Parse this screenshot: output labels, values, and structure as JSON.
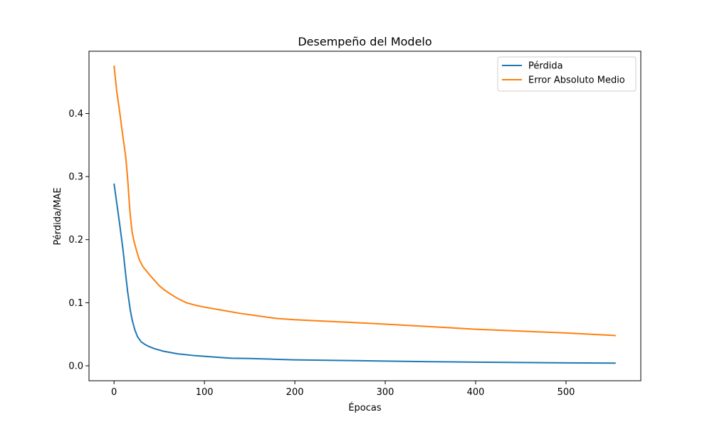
{
  "chart_data": {
    "type": "line",
    "title": "Desempeño del Modelo",
    "xlabel": "Épocas",
    "ylabel": "Pérdida/MAE",
    "xlim": [
      -27.7,
      582.7
    ],
    "ylim": [
      -0.0237,
      0.4987
    ],
    "xticks": [
      0,
      100,
      200,
      300,
      400,
      500
    ],
    "yticks": [
      0.0,
      0.1,
      0.2,
      0.3,
      0.4
    ],
    "ytick_labels": [
      "0.0",
      "0.1",
      "0.2",
      "0.3",
      "0.4"
    ],
    "xtick_labels": [
      "0",
      "100",
      "200",
      "300",
      "400",
      "500"
    ],
    "grid": false,
    "legend_position": "top-right",
    "series": [
      {
        "name": "Pérdida",
        "color": "#1f77b4",
        "x": [
          0,
          3,
          6,
          10,
          13,
          15,
          18,
          20,
          23,
          26,
          30,
          34,
          38,
          45,
          55,
          70,
          90,
          110,
          130,
          150,
          175,
          200,
          250,
          300,
          350,
          400,
          450,
          500,
          555
        ],
        "y": [
          0.289,
          0.258,
          0.227,
          0.183,
          0.143,
          0.118,
          0.088,
          0.073,
          0.057,
          0.046,
          0.038,
          0.034,
          0.031,
          0.027,
          0.023,
          0.019,
          0.016,
          0.014,
          0.012,
          0.0115,
          0.0105,
          0.0095,
          0.0085,
          0.0075,
          0.0065,
          0.0058,
          0.0052,
          0.0047,
          0.0042
        ]
      },
      {
        "name": "Error Absoluto Medio",
        "color": "#ff7f0e",
        "x": [
          0,
          3,
          6,
          9,
          13,
          15,
          17,
          18,
          20,
          22,
          25,
          28,
          32,
          36,
          40,
          45,
          50,
          55,
          60,
          70,
          80,
          90,
          100,
          120,
          140,
          160,
          180,
          200,
          230,
          260,
          300,
          350,
          400,
          450,
          500,
          555
        ],
        "y": [
          0.476,
          0.435,
          0.405,
          0.372,
          0.33,
          0.298,
          0.256,
          0.238,
          0.212,
          0.198,
          0.182,
          0.168,
          0.157,
          0.15,
          0.143,
          0.135,
          0.127,
          0.121,
          0.116,
          0.107,
          0.1,
          0.096,
          0.093,
          0.088,
          0.083,
          0.079,
          0.075,
          0.073,
          0.071,
          0.069,
          0.066,
          0.062,
          0.058,
          0.055,
          0.052,
          0.048
        ]
      }
    ]
  }
}
